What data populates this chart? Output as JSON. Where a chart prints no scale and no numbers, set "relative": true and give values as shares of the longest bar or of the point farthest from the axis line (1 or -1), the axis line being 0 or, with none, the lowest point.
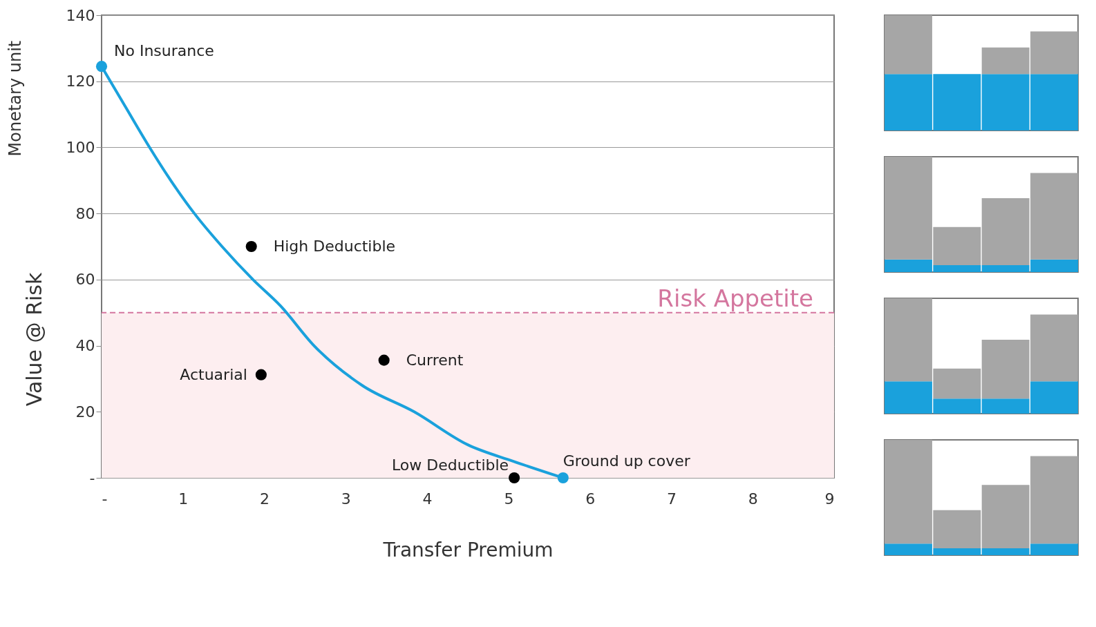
{
  "chart_data": [
    {
      "type": "line",
      "xlabel": "Transfer Premium",
      "ylabel": "Value @ Risk",
      "xlim": [
        0,
        9
      ],
      "ylim": [
        0,
        140
      ],
      "xticks": [
        {
          "value": 0,
          "label": "-"
        },
        1,
        2,
        3,
        4,
        5,
        6,
        7,
        8,
        9
      ],
      "yticks": [
        {
          "value": 0,
          "label": "-"
        },
        20,
        40,
        60,
        80,
        100,
        120,
        140
      ],
      "grid": "y",
      "line_style": "solid",
      "series": [
        {
          "type": "line",
          "color": "#1aa1dc",
          "x": [
            0,
            0.3,
            0.59,
            0.85,
            1.14,
            1.48,
            1.86,
            2.2,
            2.61,
            3.2,
            3.84,
            4.5,
            5.06,
            5.67
          ],
          "values": [
            124.5,
            112,
            100,
            90,
            80,
            70,
            60,
            52,
            40,
            28,
            20,
            10,
            5,
            0
          ]
        },
        {
          "type": "scatter",
          "colors": [
            "#1aa1dc",
            "#000000",
            "#000000",
            "#000000",
            "#000000",
            "#1aa1dc"
          ],
          "x": [
            0,
            1.84,
            1.96,
            3.47,
            5.07,
            5.67
          ],
          "values": [
            124.5,
            70,
            31.2,
            35.6,
            0,
            0
          ]
        }
      ],
      "annotations": [
        {
          "text": "No Insurance",
          "x": 0,
          "y": 124.5
        },
        {
          "text": "High Deductible",
          "x": 1.84,
          "y": 70
        },
        {
          "text": "Actuarial",
          "x": 1.96,
          "y": 31.2
        },
        {
          "text": "Current",
          "x": 3.47,
          "y": 35.6
        },
        {
          "text": "Low Deductible",
          "x": 5.07,
          "y": 0
        },
        {
          "text": "Ground up cover",
          "x": 5.67,
          "y": 0
        },
        "Monetary unit"
      ],
      "ref_lines": [
        {
          "axis": "y",
          "value": 50,
          "label": "Risk Appetite",
          "color": "#d4769e",
          "line_style": "dashed"
        }
      ],
      "bands": [
        {
          "axis": "y",
          "from": 0,
          "to": 50,
          "color": "#fdeef0"
        }
      ]
    },
    {
      "type": "bar",
      "stacked": true,
      "relative": true,
      "categories": [
        null,
        null,
        null,
        null
      ],
      "series": [
        {
          "color": "#1aa1dc",
          "values": [
            0.49,
            0.49,
            0.49,
            0.49
          ]
        },
        {
          "color": "#a6a6a6",
          "values": [
            0.51,
            0,
            0.23,
            0.37
          ]
        }
      ]
    },
    {
      "type": "bar",
      "stacked": true,
      "relative": true,
      "categories": [
        null,
        null,
        null,
        null
      ],
      "series": [
        {
          "color": "#1aa1dc",
          "values": [
            0.11,
            0.06,
            0.06,
            0.11
          ]
        },
        {
          "color": "#a6a6a6",
          "values": [
            0.89,
            0.33,
            0.58,
            0.75
          ]
        }
      ]
    },
    {
      "type": "bar",
      "stacked": true,
      "relative": true,
      "categories": [
        null,
        null,
        null,
        null
      ],
      "series": [
        {
          "color": "#1aa1dc",
          "values": [
            0.28,
            0.13,
            0.13,
            0.28
          ]
        },
        {
          "color": "#a6a6a6",
          "values": [
            0.72,
            0.26,
            0.51,
            0.58
          ]
        }
      ]
    },
    {
      "type": "bar",
      "stacked": true,
      "relative": true,
      "categories": [
        null,
        null,
        null,
        null
      ],
      "series": [
        {
          "color": "#1aa1dc",
          "values": [
            0.1,
            0.06,
            0.06,
            0.1
          ]
        },
        {
          "color": "#a6a6a6",
          "values": [
            0.9,
            0.33,
            0.55,
            0.76
          ]
        }
      ]
    }
  ]
}
